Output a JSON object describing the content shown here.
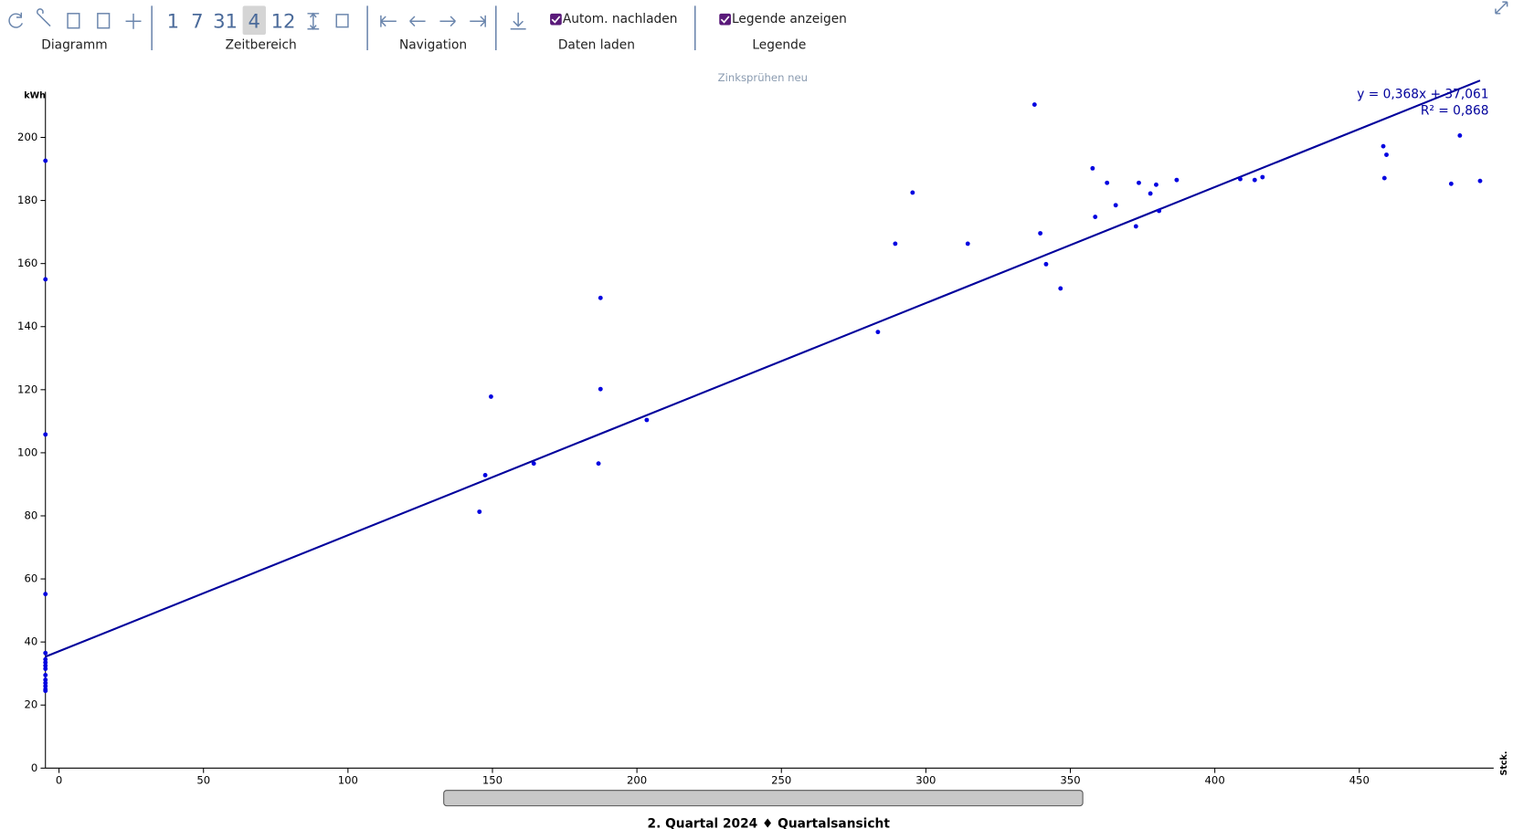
{
  "toolbar": {
    "groups": [
      "Diagramm",
      "Zeitbereich",
      "Navigation",
      "Daten laden",
      "Legende"
    ],
    "zeitbereich_buttons": [
      "1",
      "7",
      "31",
      "4",
      "12"
    ],
    "checkboxes": [
      "Autom. nachladen",
      "Legende anzeigen"
    ]
  },
  "chart_data": {
    "type": "scatter",
    "title": "Zinksprühen neu",
    "y_label": "kWh",
    "x_label": "Stck.",
    "color": "#0000e0",
    "x": [
      -4.7,
      -4.7,
      -4.7,
      -4.7,
      -4.7,
      -4.7,
      -4.7,
      -4.7,
      -4.7,
      -4.7,
      -4.7,
      -4.7,
      -4.7,
      -4.7,
      -4.7,
      145.5,
      147.5,
      149.5,
      164.3,
      186.7,
      187.4,
      187.4,
      203.4,
      283.4,
      289.4,
      295.4,
      314.5,
      337.6,
      339.6,
      341.6,
      346.6,
      357.7,
      358.6,
      362.7,
      365.7,
      372.7,
      373.7,
      377.7,
      379.7,
      380.7,
      386.8,
      408.8,
      413.8,
      416.5,
      458.3,
      459.4,
      458.7,
      481.8,
      484.8,
      491.8
    ],
    "values": [
      192.6,
      155,
      105.8,
      55.2,
      36.5,
      34.5,
      33.5,
      32.5,
      31.5,
      29.5,
      28,
      27,
      26,
      25,
      24.5,
      81.3,
      92.9,
      117.8,
      96.6,
      96.6,
      149.1,
      120.2,
      110.4,
      138.3,
      166.3,
      182.5,
      166.3,
      210.4,
      169.6,
      159.8,
      152.1,
      190.2,
      174.8,
      185.6,
      178.5,
      171.8,
      185.6,
      182.2,
      185,
      176.7,
      186.5,
      186.8,
      186.5,
      187.4,
      197.2,
      194.5,
      187.1,
      185.3,
      200.6,
      186.2
    ],
    "trendline": {
      "slope": 0.368,
      "intercept": 37.061,
      "color": "#00009c",
      "equation": "y = 0,368x + 37,061",
      "r2": "R² = 0,868"
    },
    "xlim": [
      -4.7,
      496.5
    ],
    "ylim": [
      0,
      216
    ],
    "xticks": [
      0,
      50,
      100,
      150,
      200,
      250,
      300,
      350,
      400,
      450
    ],
    "yticks": [
      0,
      20,
      40,
      60,
      80,
      100,
      120,
      140,
      160,
      180,
      200
    ]
  },
  "footer": "2. Quartal 2024 ♦ Quartalsansicht"
}
